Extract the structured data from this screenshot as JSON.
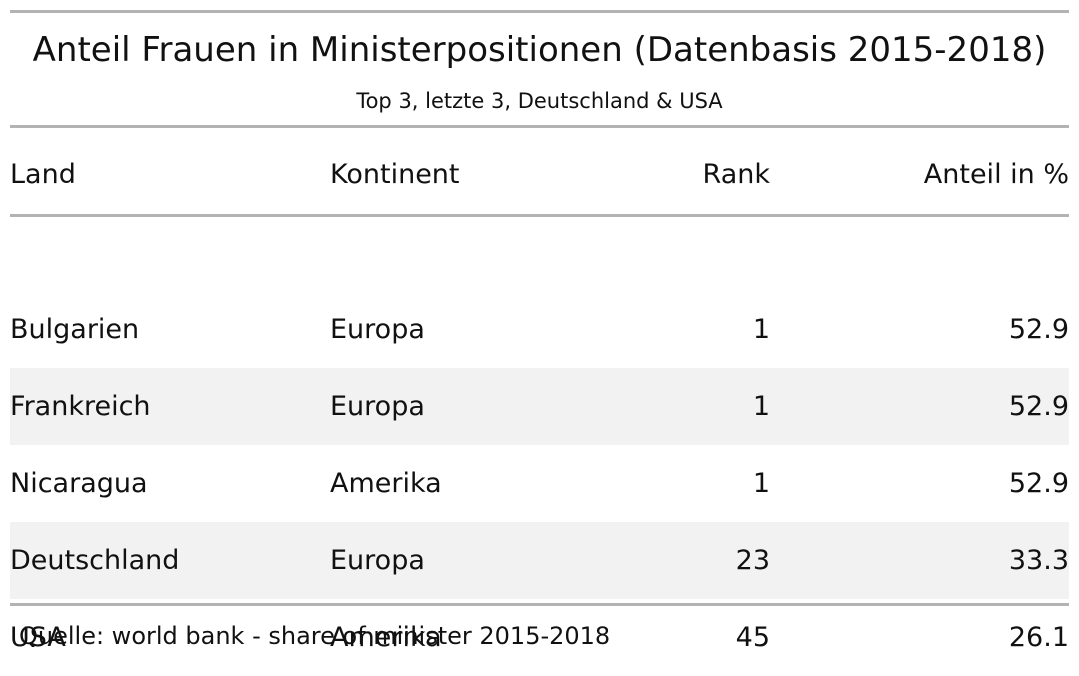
{
  "title": "Anteil Frauen in Ministerpositionen (Datenbasis 2015-2018)",
  "subtitle": "Top 3, letzte 3, Deutschland & USA",
  "source": "Quelle: world bank - share of minister 2015-2018",
  "chart_data": {
    "type": "table",
    "title": "Anteil Frauen in Ministerpositionen (Datenbasis 2015-2018)",
    "subtitle": "Top 3, letzte 3, Deutschland & USA",
    "columns": [
      "Land",
      "Kontinent",
      "Rank",
      "Anteil in %"
    ],
    "rows": [
      [
        "Bulgarien",
        "Europa",
        "1",
        "52.9"
      ],
      [
        "Frankreich",
        "Europa",
        "1",
        "52.9"
      ],
      [
        "Nicaragua",
        "Amerika",
        "1",
        "52.9"
      ],
      [
        "Deutschland",
        "Europa",
        "23",
        "33.3"
      ],
      [
        "USA",
        "Amerika",
        "45",
        "26.1"
      ]
    ],
    "source": "Quelle: world bank - share of minister 2015-2018",
    "striped_rows": true,
    "stripe_color": "#f2f2f2",
    "rule_color": "#b3b3b3"
  }
}
